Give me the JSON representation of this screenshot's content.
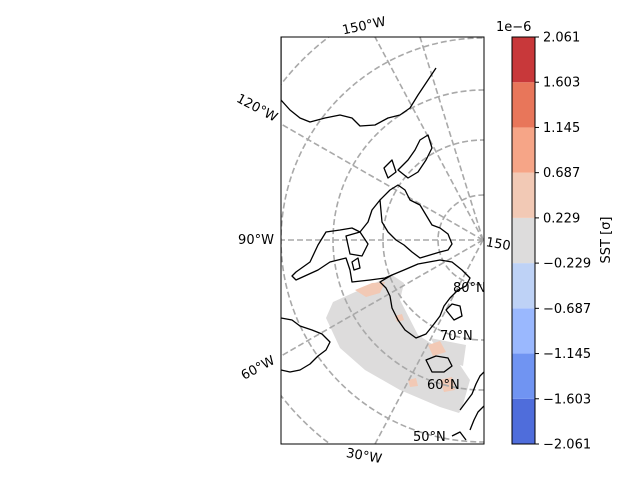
{
  "chart_data": {
    "type": "heatmap",
    "projection": "north-polar-stereographic",
    "variable_label": "SST [σ]",
    "colorbar": {
      "scale_label": "1e−6",
      "boundaries": [
        -2.061,
        -1.603,
        -1.145,
        -0.687,
        -0.229,
        0.229,
        0.687,
        1.145,
        1.603,
        2.061
      ],
      "tick_labels": [
        "−2.061",
        "−1.603",
        "−1.145",
        "−0.687",
        "−0.229",
        "0.229",
        "0.687",
        "1.145",
        "1.603",
        "2.061"
      ],
      "colors": [
        "#4f6ddb",
        "#7094f2",
        "#9ab8fe",
        "#bed2f6",
        "#dddcdc",
        "#f2c9b5",
        "#f6a587",
        "#e8765a",
        "#c8383a"
      ]
    },
    "lon_gridlines": [
      {
        "label": "150°W",
        "lon": -150
      },
      {
        "label": "120°W",
        "lon": -120
      },
      {
        "label": "90°W",
        "lon": -90
      },
      {
        "label": "60°W",
        "lon": -60
      },
      {
        "label": "30°W",
        "lon": -30
      },
      {
        "label": "150",
        "lon": 150
      }
    ],
    "lat_gridlines": [
      {
        "label": "80°N",
        "lat": 80
      },
      {
        "label": "70°N",
        "lat": 70
      },
      {
        "label": "60°N",
        "lat": 60
      },
      {
        "label": "50°N",
        "lat": 50
      }
    ],
    "field_summary": "near-zero anomaly band across North Atlantic and Barents Sea, mostly in the -0.229 to 0.229 class, with small patches in the 0.229 to 0.687 class",
    "grid": true,
    "legend": "colorbar-right"
  }
}
